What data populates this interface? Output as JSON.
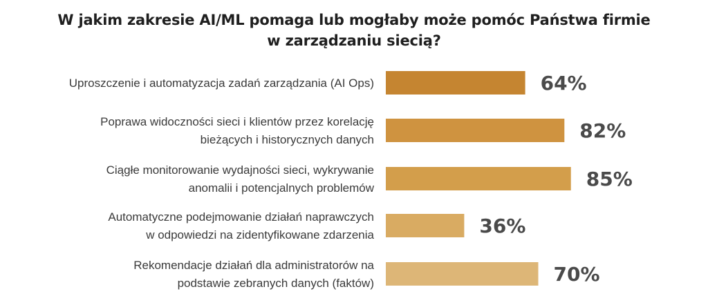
{
  "title_lines": [
    "W jakim zakresie AI/ML pomaga lub mogłaby może pomóc Państwa firmie",
    "w zarządzaniu siecią?"
  ],
  "chart_data": {
    "type": "bar",
    "orientation": "horizontal",
    "title": "W jakim zakresie AI/ML pomaga lub mogłaby może pomóc Państwa firmie w zarządzaniu siecią?",
    "categories": [
      [
        "Uproszczenie i automatyzacja zadań zarządzania (AI Ops)"
      ],
      [
        "Poprawa widoczności sieci i klientów przez korelację",
        "bieżących i historycznych danych"
      ],
      [
        "Ciągłe monitorowanie wydajności sieci, wykrywanie",
        "anomalii i potencjalnych problemów"
      ],
      [
        "Automatyczne podejmowanie działań naprawczych",
        "w odpowiedzi na zidentyfikowane zdarzenia"
      ],
      [
        "Rekomendacje działań dla administratorów na",
        "podstawie zebranych danych (faktów)"
      ]
    ],
    "values": [
      64,
      82,
      85,
      36,
      70
    ],
    "value_labels": [
      "64%",
      "82%",
      "85%",
      "36%",
      "70%"
    ],
    "colors": [
      "#c58531",
      "#cf9340",
      "#d39e4b",
      "#d9ab62",
      "#ddb677"
    ],
    "xlim": [
      0,
      100
    ],
    "grid": false,
    "legend": "none"
  }
}
